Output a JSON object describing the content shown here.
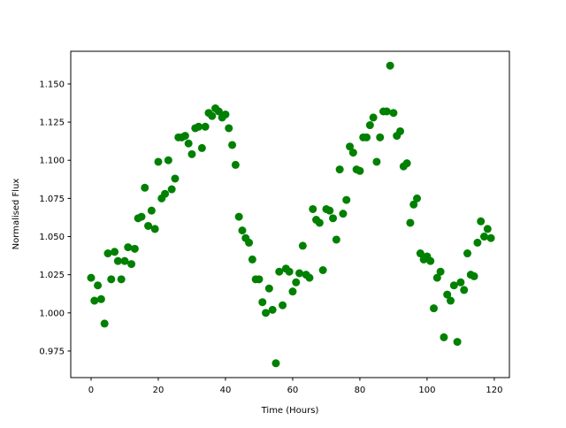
{
  "chart_data": {
    "type": "scatter",
    "title": "",
    "xlabel": "Time (Hours)",
    "ylabel": "Normalised Flux",
    "xlim": [
      -6.05,
      124.5
    ],
    "ylim": [
      0.9576,
      1.1714
    ],
    "xticks": [
      "0",
      "20",
      "40",
      "60",
      "80",
      "100",
      "120"
    ],
    "yticks": [
      "0.975",
      "1.000",
      "1.025",
      "1.050",
      "1.075",
      "1.100",
      "1.125",
      "1.150"
    ],
    "grid": false,
    "marker_color": "#008000",
    "x": [
      0,
      1,
      2,
      3,
      4,
      5,
      6,
      7,
      8,
      9,
      10,
      11,
      12,
      13,
      14,
      15,
      16,
      17,
      18,
      19,
      20,
      21,
      22,
      23,
      24,
      25,
      26,
      27,
      28,
      29,
      30,
      31,
      32,
      33,
      34,
      35,
      36,
      37,
      38,
      39,
      40,
      41,
      42,
      43,
      44,
      45,
      46,
      47,
      48,
      49,
      50,
      51,
      52,
      53,
      54,
      55,
      56,
      57,
      58,
      59,
      60,
      61,
      62,
      63,
      64,
      65,
      66,
      67,
      68,
      69,
      70,
      71,
      72,
      73,
      74,
      75,
      76,
      77,
      78,
      79,
      80,
      81,
      82,
      83,
      84,
      85,
      86,
      87,
      88,
      89,
      90,
      91,
      92,
      93,
      94,
      95,
      96,
      97,
      98,
      99,
      100,
      101,
      102,
      103,
      104,
      105,
      106,
      107,
      108,
      109,
      110,
      111,
      112,
      113,
      114,
      115,
      116,
      117,
      118,
      119
    ],
    "y": [
      1.023,
      1.008,
      1.018,
      1.009,
      0.993,
      1.039,
      1.022,
      1.04,
      1.034,
      1.022,
      1.034,
      1.043,
      1.032,
      1.042,
      1.062,
      1.063,
      1.082,
      1.057,
      1.067,
      1.055,
      1.099,
      1.075,
      1.078,
      1.1,
      1.081,
      1.088,
      1.115,
      1.115,
      1.116,
      1.111,
      1.104,
      1.121,
      1.122,
      1.108,
      1.122,
      1.131,
      1.129,
      1.134,
      1.132,
      1.128,
      1.13,
      1.121,
      1.11,
      1.097,
      1.063,
      1.054,
      1.049,
      1.046,
      1.035,
      1.022,
      1.022,
      1.007,
      1.0,
      1.016,
      1.002,
      0.967,
      1.027,
      1.005,
      1.029,
      1.027,
      1.014,
      1.02,
      1.026,
      1.044,
      1.025,
      1.023,
      1.068,
      1.061,
      1.059,
      1.028,
      1.068,
      1.067,
      1.062,
      1.048,
      1.094,
      1.065,
      1.074,
      1.109,
      1.105,
      1.094,
      1.093,
      1.115,
      1.115,
      1.123,
      1.128,
      1.099,
      1.115,
      1.132,
      1.132,
      1.162,
      1.131,
      1.116,
      1.119,
      1.096,
      1.098,
      1.059,
      1.071,
      1.075,
      1.039,
      1.035,
      1.037,
      1.034,
      1.003,
      1.023,
      1.027,
      0.984,
      1.012,
      1.008,
      1.018,
      0.981,
      1.02,
      1.015,
      1.039,
      1.025,
      1.024,
      1.046,
      1.06,
      1.05,
      1.055,
      1.049
    ]
  }
}
